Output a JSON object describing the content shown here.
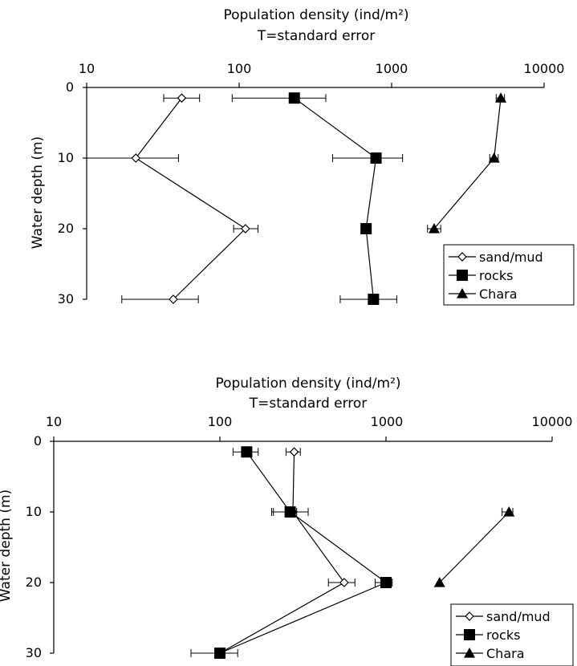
{
  "chart_data": [
    {
      "type": "line",
      "title": "Population density (ind/m²)",
      "subtitle": "T=standard error",
      "xlabel": "",
      "ylabel": "Water depth (m)",
      "xscale": "log",
      "xlim": [
        10,
        10000
      ],
      "ylim": [
        0,
        30
      ],
      "y_inverted": true,
      "x_ticks": [
        "10",
        "100",
        "1000",
        "10000"
      ],
      "y_ticks": [
        "0",
        "10",
        "20",
        "30"
      ],
      "legend_position": "bottom-right",
      "series": [
        {
          "name": "sand/mud",
          "marker": "open-diamond",
          "points": [
            {
              "x": 42,
              "y": 1.5,
              "err_low": 32,
              "err_high": 55
            },
            {
              "x": 21,
              "y": 10,
              "err_low": 10,
              "err_high": 40
            },
            {
              "x": 110,
              "y": 20,
              "err_low": 92,
              "err_high": 133
            },
            {
              "x": 37,
              "y": 30,
              "err_low": 17,
              "err_high": 54
            }
          ]
        },
        {
          "name": "rocks",
          "marker": "filled-square",
          "points": [
            {
              "x": 230,
              "y": 1.5,
              "err_low": 90,
              "err_high": 370
            },
            {
              "x": 790,
              "y": 10,
              "err_low": 410,
              "err_high": 1180
            },
            {
              "x": 680,
              "y": 20,
              "err_low": 680,
              "err_high": 680
            },
            {
              "x": 760,
              "y": 30,
              "err_low": 460,
              "err_high": 1080
            }
          ]
        },
        {
          "name": "Chara",
          "marker": "filled-triangle",
          "points": [
            {
              "x": 5200,
              "y": 1.5,
              "err_low": 4850,
              "err_high": 5500
            },
            {
              "x": 4700,
              "y": 10,
              "err_low": 4400,
              "err_high": 5000
            },
            {
              "x": 1900,
              "y": 20,
              "err_low": 1720,
              "err_high": 2100
            }
          ]
        }
      ]
    },
    {
      "type": "line",
      "title": "Population density (ind/m²)",
      "subtitle": "T=standard error",
      "xlabel": "",
      "ylabel": "Water depth (m)",
      "xscale": "log",
      "xlim": [
        10,
        10000
      ],
      "ylim": [
        0,
        30
      ],
      "y_inverted": true,
      "x_ticks": [
        "10",
        "100",
        "1000",
        "10000"
      ],
      "y_ticks": [
        "0",
        "10",
        "20",
        "30"
      ],
      "legend_position": "bottom-right",
      "series": [
        {
          "name": "sand/mud",
          "marker": "open-diamond",
          "points": [
            {
              "x": 280,
              "y": 1.5,
              "err_low": 250,
              "err_high": 305
            },
            {
              "x": 275,
              "y": 10,
              "err_low": 210,
              "err_high": 340
            },
            {
              "x": 560,
              "y": 20,
              "err_low": 450,
              "err_high": 650
            },
            {
              "x": 100,
              "y": 30,
              "err_low": 100,
              "err_high": 100
            }
          ]
        },
        {
          "name": "rocks",
          "marker": "filled-square",
          "points": [
            {
              "x": 145,
              "y": 1.5,
              "err_low": 120,
              "err_high": 170
            },
            {
              "x": 265,
              "y": 10,
              "err_low": 205,
              "err_high": 290
            },
            {
              "x": 1000,
              "y": 20,
              "err_low": 860,
              "err_high": 1090
            },
            {
              "x": 100,
              "y": 30,
              "err_low": 67,
              "err_high": 128
            }
          ]
        },
        {
          "name": "Chara",
          "marker": "filled-triangle",
          "points": [
            {
              "x": 5500,
              "y": 10,
              "err_low": 5000,
              "err_high": 5800
            },
            {
              "x": 2100,
              "y": 20,
              "err_low": 2100,
              "err_high": 2100
            }
          ]
        }
      ]
    }
  ]
}
